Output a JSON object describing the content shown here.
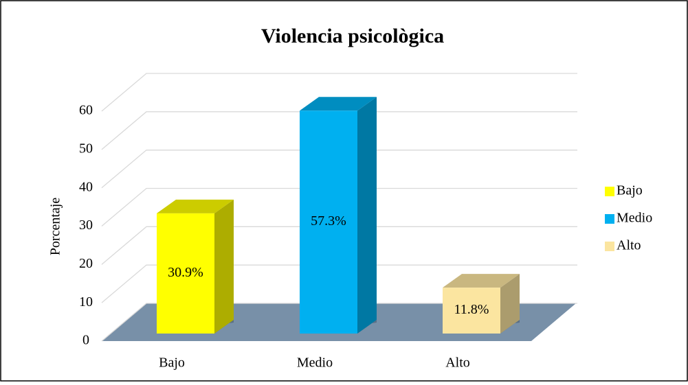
{
  "chart_data": {
    "type": "bar3d",
    "title": "Violencia psicològica",
    "y_label": "Porcentaje",
    "categories": [
      "Bajo",
      "Medio",
      "Alto"
    ],
    "values": [
      30.9,
      57.3,
      11.8
    ],
    "value_labels": [
      "30.9%",
      "57.3%",
      "11.8%"
    ],
    "colors": [
      "#ffff00",
      "#00b0f0",
      "#fbe5a0"
    ],
    "ylim": [
      0,
      60
    ],
    "yticks": [
      0,
      10,
      20,
      30,
      40,
      50,
      60
    ],
    "grid": true,
    "legend": "right"
  }
}
